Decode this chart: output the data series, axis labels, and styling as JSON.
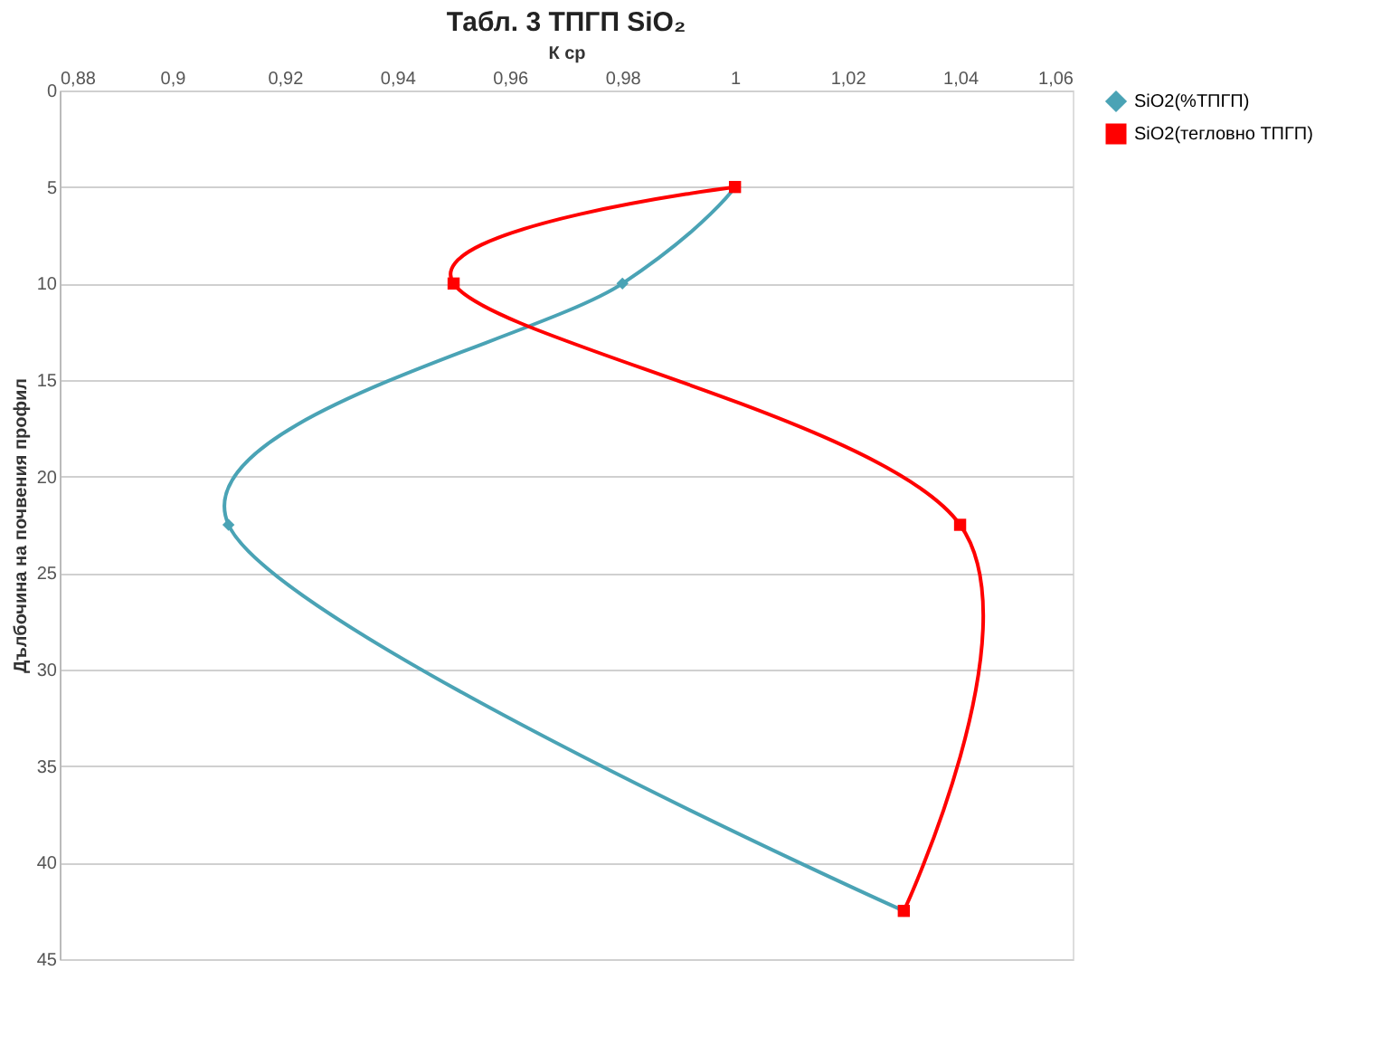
{
  "chart_data": {
    "type": "line",
    "title": "Табл. 3 ТПГП SiO₂",
    "xlabel": "К ср",
    "ylabel": "Дълбочина на почвения профил",
    "xlim": [
      0.88,
      1.06
    ],
    "xticks": [
      {
        "value": 0.88,
        "label": "0,88"
      },
      {
        "value": 0.9,
        "label": "0,9"
      },
      {
        "value": 0.92,
        "label": "0,92"
      },
      {
        "value": 0.94,
        "label": "0,94"
      },
      {
        "value": 0.96,
        "label": "0,96"
      },
      {
        "value": 0.98,
        "label": "0,98"
      },
      1,
      {
        "value": 1.02,
        "label": "1,02"
      },
      {
        "value": 1.04,
        "label": "1,04"
      },
      {
        "value": 1.06,
        "label": "1,06"
      }
    ],
    "ylim": [
      45,
      0
    ],
    "yticks": [
      0,
      5,
      10,
      15,
      20,
      25,
      30,
      35,
      40,
      45
    ],
    "grid": "y",
    "legend": "right",
    "line_style": "solid",
    "series": [
      {
        "name": "SiO2(%ТПГП)",
        "color": "#4aa3b5",
        "marker": "diamond",
        "x": [
          1,
          0.98,
          0.91,
          1.03
        ],
        "values": [
          5,
          10,
          22.5,
          42.5
        ]
      },
      {
        "name": "SiO2(тегловно ТПГП)",
        "color": "#ff0000",
        "marker": "square",
        "x": [
          1,
          0.95,
          1.04,
          1.03
        ],
        "values": [
          5,
          10,
          22.5,
          42.5
        ]
      }
    ]
  }
}
